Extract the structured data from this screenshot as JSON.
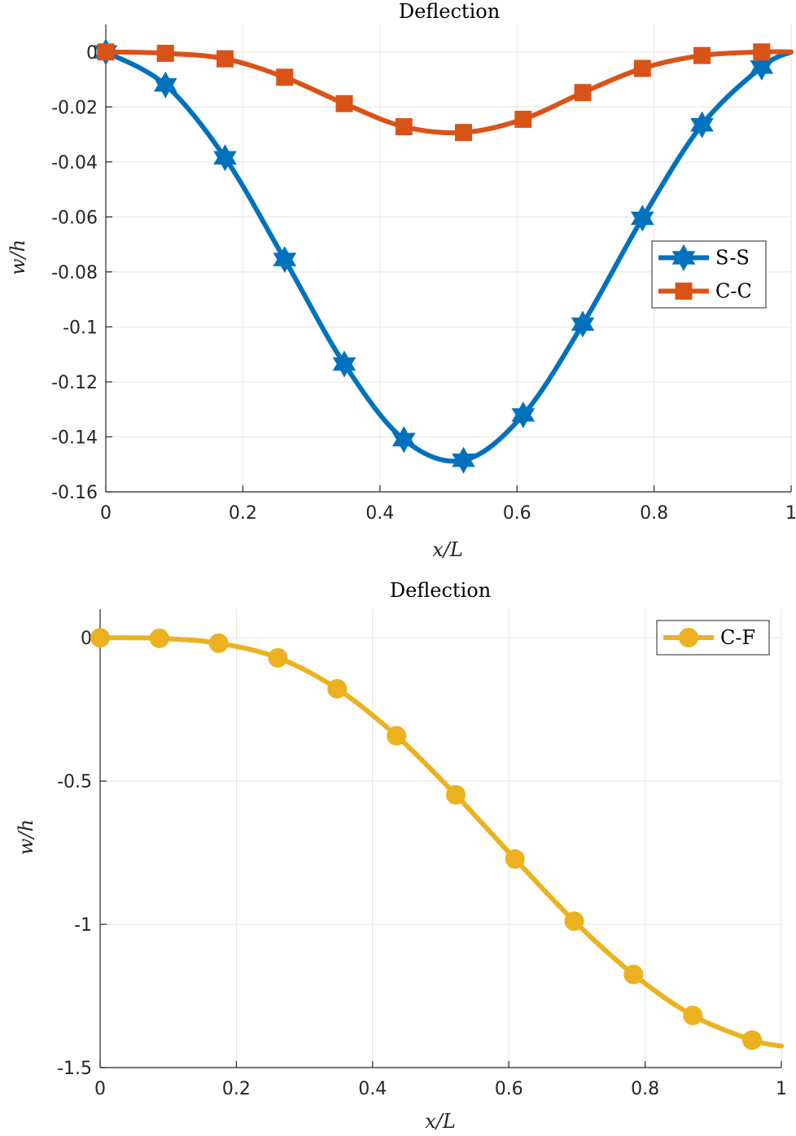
{
  "chart_data": [
    {
      "type": "line",
      "title": "Deflection",
      "xlabel": "x/L",
      "ylabel": "w/h",
      "xlim": [
        0,
        1
      ],
      "ylim": [
        -0.16,
        0.01
      ],
      "xticks": [
        0,
        0.2,
        0.4,
        0.6,
        0.8,
        1
      ],
      "xtick_labels": [
        "0",
        "0.2",
        "0.4",
        "0.6",
        "0.8",
        "1"
      ],
      "yticks": [
        0,
        -0.02,
        -0.04,
        -0.06,
        -0.08,
        -0.1,
        -0.12,
        -0.14,
        -0.16
      ],
      "ytick_labels": [
        "0",
        "-0.02",
        "-0.04",
        "-0.06",
        "-0.08",
        "-0.1",
        "-0.12",
        "-0.14",
        "-0.16"
      ],
      "grid": true,
      "legend": {
        "location": "right",
        "entries": [
          "S-S",
          "C-C"
        ]
      },
      "series": [
        {
          "name": "S-S",
          "color": "#0072BD",
          "marker": "hexagram",
          "x": [
            0,
            0.087,
            0.174,
            0.261,
            0.348,
            0.435,
            0.522,
            0.609,
            0.696,
            0.783,
            0.87,
            0.957,
            1
          ],
          "y": [
            0,
            -0.012,
            -0.0385,
            -0.0755,
            -0.1135,
            -0.141,
            -0.1485,
            -0.132,
            -0.099,
            -0.0605,
            -0.0265,
            -0.0055,
            0
          ]
        },
        {
          "name": "C-C",
          "color": "#D95319",
          "marker": "square",
          "x": [
            0,
            0.087,
            0.174,
            0.261,
            0.348,
            0.435,
            0.522,
            0.609,
            0.696,
            0.783,
            0.87,
            0.957,
            1
          ],
          "y": [
            0,
            -0.0005,
            -0.0025,
            -0.0092,
            -0.0188,
            -0.0272,
            -0.0293,
            -0.0245,
            -0.0148,
            -0.006,
            -0.0013,
            0,
            0
          ]
        }
      ]
    },
    {
      "type": "line",
      "title": "Deflection",
      "xlabel": "x/L",
      "ylabel": "w/h",
      "xlim": [
        0,
        1
      ],
      "ylim": [
        -1.5,
        0.1
      ],
      "xticks": [
        0,
        0.2,
        0.4,
        0.6,
        0.8,
        1
      ],
      "xtick_labels": [
        "0",
        "0.2",
        "0.4",
        "0.6",
        "0.8",
        "1"
      ],
      "yticks": [
        0,
        -0.5,
        -1,
        -1.5
      ],
      "ytick_labels": [
        "0",
        "-0.5",
        "-1",
        "-1.5"
      ],
      "grid": true,
      "legend": {
        "location": "top-right",
        "entries": [
          "C-F"
        ]
      },
      "series": [
        {
          "name": "C-F",
          "color": "#EDB120",
          "marker": "circle",
          "x": [
            0,
            0.087,
            0.174,
            0.261,
            0.348,
            0.435,
            0.522,
            0.609,
            0.696,
            0.783,
            0.87,
            0.957,
            1
          ],
          "y": [
            0,
            -0.002,
            -0.019,
            -0.07,
            -0.178,
            -0.342,
            -0.548,
            -0.772,
            -0.989,
            -1.175,
            -1.318,
            -1.404,
            -1.425
          ]
        }
      ]
    }
  ]
}
